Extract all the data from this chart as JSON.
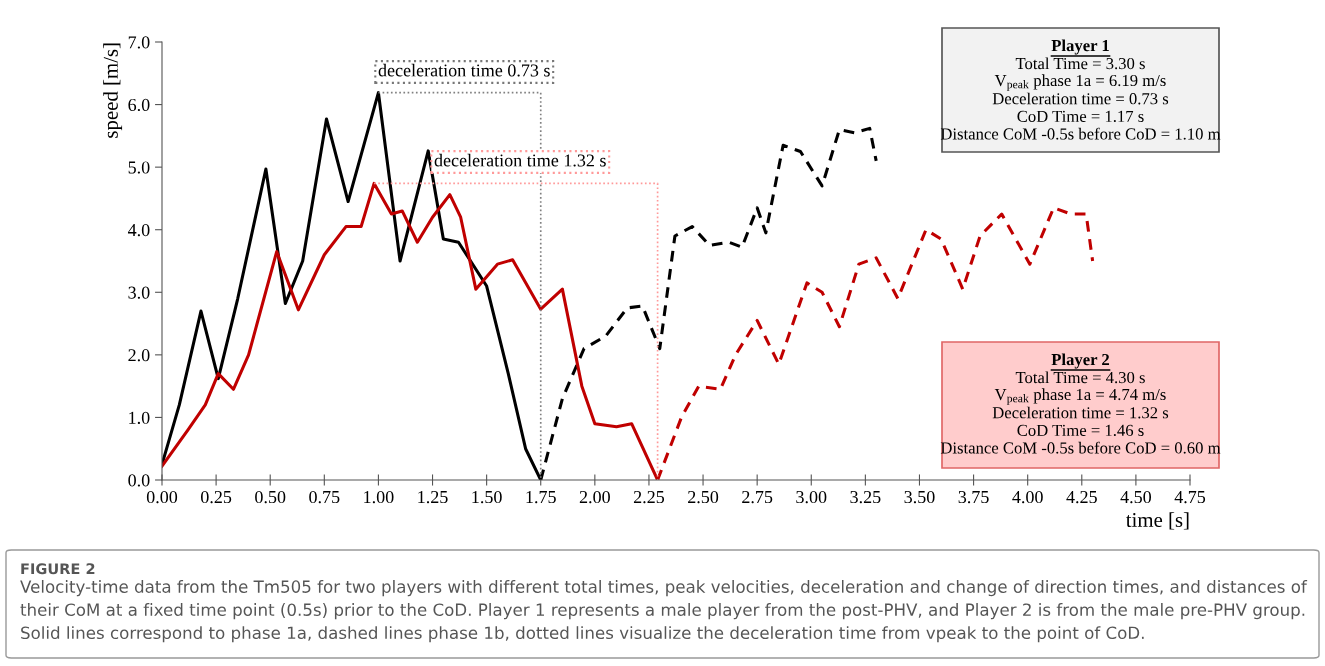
{
  "chart_data": {
    "type": "line",
    "xlabel": "time [s]",
    "ylabel": "speed [m/s]",
    "xlim": [
      0,
      4.75
    ],
    "ylim": [
      0,
      7
    ],
    "xticks": [
      {
        "value": 0,
        "label": "0.00"
      },
      {
        "value": 0.25,
        "label": "0.25"
      },
      {
        "value": 0.5,
        "label": "0.50"
      },
      {
        "value": 0.75,
        "label": "0.75"
      },
      {
        "value": 1,
        "label": "1.00"
      },
      {
        "value": 1.25,
        "label": "1.25"
      },
      {
        "value": 1.5,
        "label": "1.50"
      },
      {
        "value": 1.75,
        "label": "1.75"
      },
      {
        "value": 2,
        "label": "2.00"
      },
      {
        "value": 2.25,
        "label": "2.25"
      },
      {
        "value": 2.5,
        "label": "2.50"
      },
      {
        "value": 2.75,
        "label": "2.75"
      },
      {
        "value": 3,
        "label": "3.00"
      },
      {
        "value": 3.25,
        "label": "3.25"
      },
      {
        "value": 3.5,
        "label": "3.50"
      },
      {
        "value": 3.75,
        "label": "3.75"
      },
      {
        "value": 4,
        "label": "4.00"
      },
      {
        "value": 4.25,
        "label": "4.25"
      },
      {
        "value": 4.5,
        "label": "4.50"
      },
      {
        "value": 4.75,
        "label": "4.75"
      }
    ],
    "yticks": [
      {
        "value": 0,
        "label": "0.0"
      },
      {
        "value": 1,
        "label": "1.0"
      },
      {
        "value": 2,
        "label": "2.0"
      },
      {
        "value": 3,
        "label": "3.0"
      },
      {
        "value": 4,
        "label": "4.0"
      },
      {
        "value": 5,
        "label": "5.0"
      },
      {
        "value": 6,
        "label": "6.0"
      },
      {
        "value": 7,
        "label": "7.0"
      }
    ],
    "grid": false,
    "marker": "none",
    "series": [
      {
        "color": "#000000",
        "line_style": "solid",
        "x": [
          0,
          0.08,
          0.18,
          0.26,
          0.35,
          0.48,
          0.57,
          0.65,
          0.76,
          0.86,
          1.0,
          1.1,
          1.23,
          1.3,
          1.37,
          1.5,
          1.6,
          1.68,
          1.75
        ],
        "values": [
          0.25,
          1.2,
          2.7,
          1.62,
          2.9,
          4.97,
          2.82,
          3.5,
          5.77,
          4.45,
          6.19,
          3.5,
          5.26,
          3.85,
          3.8,
          3.1,
          1.7,
          0.5,
          0.0
        ]
      },
      {
        "color": "#000000",
        "line_style": "dashed",
        "x": [
          1.75,
          1.85,
          1.95,
          2.05,
          2.15,
          2.22,
          2.3,
          2.37,
          2.45,
          2.53,
          2.62,
          2.68,
          2.75,
          2.79,
          2.87,
          2.95,
          3.05,
          3.13,
          3.2,
          3.27,
          3.3
        ],
        "values": [
          0.0,
          1.3,
          2.1,
          2.3,
          2.75,
          2.78,
          2.1,
          3.9,
          4.05,
          3.75,
          3.8,
          3.72,
          4.35,
          3.95,
          5.35,
          5.25,
          4.7,
          5.6,
          5.55,
          5.62,
          5.1
        ]
      },
      {
        "color": "#c00000",
        "line_style": "solid",
        "x": [
          0,
          0.12,
          0.2,
          0.26,
          0.33,
          0.4,
          0.53,
          0.63,
          0.75,
          0.85,
          0.92,
          0.98,
          1.06,
          1.11,
          1.18,
          1.25,
          1.33,
          1.38,
          1.45,
          1.55,
          1.62,
          1.75,
          1.85,
          1.94,
          2.0,
          2.1,
          2.17,
          2.29
        ],
        "values": [
          0.22,
          0.8,
          1.2,
          1.7,
          1.45,
          2.0,
          3.65,
          2.72,
          3.6,
          4.05,
          4.05,
          4.74,
          4.25,
          4.3,
          3.8,
          4.2,
          4.56,
          4.2,
          3.05,
          3.45,
          3.52,
          2.73,
          3.05,
          1.5,
          0.9,
          0.85,
          0.9,
          0.0
        ]
      },
      {
        "color": "#c00000",
        "line_style": "dashed",
        "x": [
          2.29,
          2.4,
          2.48,
          2.58,
          2.65,
          2.75,
          2.85,
          2.98,
          3.05,
          3.13,
          3.22,
          3.3,
          3.4,
          3.53,
          3.6,
          3.7,
          3.78,
          3.88,
          4.01,
          4.12,
          4.2,
          4.27,
          4.3
        ],
        "values": [
          0.0,
          1.0,
          1.5,
          1.45,
          2.0,
          2.55,
          1.85,
          3.15,
          3.0,
          2.45,
          3.45,
          3.55,
          2.9,
          4.0,
          3.85,
          3.05,
          3.9,
          4.25,
          3.45,
          4.35,
          4.25,
          4.25,
          3.5
        ]
      },
      {
        "color": "#808080",
        "line_style": "dotted",
        "x": [
          1.0,
          1.75,
          1.75
        ],
        "values": [
          6.19,
          6.19,
          0.0
        ]
      },
      {
        "color": "#ff9999",
        "line_style": "dotted",
        "x": [
          0.98,
          2.29,
          2.29
        ],
        "values": [
          4.74,
          4.74,
          0.0
        ]
      }
    ],
    "annotations": [
      "deceleration time 0.73 s",
      "deceleration time 1.32 s",
      "Player 1\nTotal Time = 3.30 s\nV$_{peak}$ phase 1a = 6.19 m/s\nDeceleration time = 0.73 s\nCoD Time = 1.17 s\nDistance CoM -0.5s before CoD = 1.10 m",
      "Player 2\nTotal Time = 4.30 s\nV$_{peak}$ phase 1a = 4.74 m/s\nDeceleration time = 1.32 s\nCoD Time = 1.46 s\nDistance CoM -0.5s before CoD = 0.60 m",
      "FIGURE 2",
      "Velocity-time data from the Tm505 for two players with different total times, peak velocities, deceleration and change of direction times, and distances of their CoM at a fixed time point (0.5s) prior to the CoD. Player 1 represents a male player from the post-PHV, and Player 2 is from the male pre-PHV group. Solid lines correspond to phase 1a, dashed lines phase 1b, dotted lines visualize the deceleration time from vpeak to the point of CoD."
    ]
  }
}
